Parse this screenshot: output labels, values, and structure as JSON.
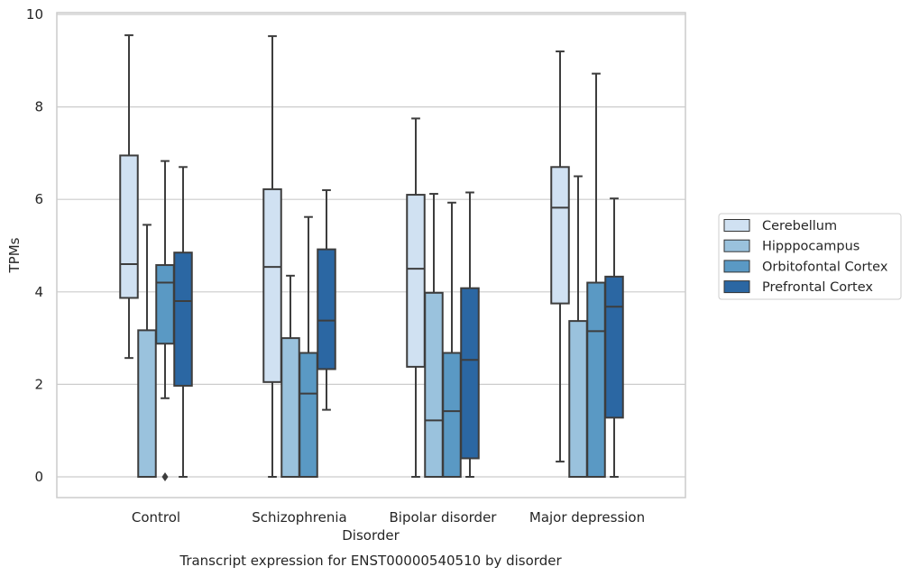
{
  "chart_data": {
    "type": "box",
    "title": "Transcript expression for ENST00000540510 by disorder",
    "xlabel": "Disorder",
    "ylabel": "TPMs",
    "ylim": [
      -0.45,
      10.05
    ],
    "yticks": [
      0,
      2,
      4,
      6,
      8,
      10
    ],
    "grid": "horizontal",
    "legend": "right",
    "categories": [
      "Control",
      "Schizophrenia",
      "Bipolar disorder",
      "Major depression"
    ],
    "series": [
      {
        "name": "Cerebellum",
        "color": "#d0e1f2",
        "boxes": [
          {
            "whisker_low": 2.57,
            "q1": 3.87,
            "median": 4.6,
            "q3": 6.95,
            "whisker_high": 9.55
          },
          {
            "whisker_low": 0.0,
            "q1": 2.05,
            "median": 4.54,
            "q3": 6.22,
            "whisker_high": 9.53
          },
          {
            "whisker_low": 0.0,
            "q1": 2.38,
            "median": 4.5,
            "q3": 6.1,
            "whisker_high": 7.75
          },
          {
            "whisker_low": 0.33,
            "q1": 3.75,
            "median": 5.82,
            "q3": 6.7,
            "whisker_high": 9.2
          }
        ]
      },
      {
        "name": "Hipppocampus",
        "color": "#9ac2dd",
        "boxes": [
          {
            "whisker_low": 0.0,
            "q1": 0.0,
            "median": 0.0,
            "q3": 3.17,
            "whisker_high": 5.45
          },
          {
            "whisker_low": 0.0,
            "q1": 0.0,
            "median": 0.0,
            "q3": 3.0,
            "whisker_high": 4.35
          },
          {
            "whisker_low": 0.0,
            "q1": 0.0,
            "median": 1.22,
            "q3": 3.98,
            "whisker_high": 6.12
          },
          {
            "whisker_low": 0.0,
            "q1": 0.0,
            "median": 0.0,
            "q3": 3.37,
            "whisker_high": 6.5
          }
        ]
      },
      {
        "name": "Orbitofontal Cortex",
        "color": "#5a99c4",
        "boxes": [
          {
            "whisker_low": 1.7,
            "q1": 2.88,
            "median": 4.2,
            "q3": 4.58,
            "whisker_high": 6.83,
            "outliers": [
              0.0
            ]
          },
          {
            "whisker_low": 0.0,
            "q1": 0.0,
            "median": 1.8,
            "q3": 2.68,
            "whisker_high": 5.62
          },
          {
            "whisker_low": 0.0,
            "q1": 0.0,
            "median": 1.42,
            "q3": 2.68,
            "whisker_high": 5.93
          },
          {
            "whisker_low": 0.0,
            "q1": 0.0,
            "median": 3.15,
            "q3": 4.2,
            "whisker_high": 8.72
          }
        ]
      },
      {
        "name": "Prefrontal Cortex",
        "color": "#2b67a3",
        "boxes": [
          {
            "whisker_low": 0.0,
            "q1": 1.97,
            "median": 3.8,
            "q3": 4.85,
            "whisker_high": 6.7
          },
          {
            "whisker_low": 1.45,
            "q1": 2.33,
            "median": 3.38,
            "q3": 4.92,
            "whisker_high": 6.2
          },
          {
            "whisker_low": 0.0,
            "q1": 0.4,
            "median": 2.53,
            "q3": 4.08,
            "whisker_high": 6.15
          },
          {
            "whisker_low": 0.0,
            "q1": 1.28,
            "median": 3.68,
            "q3": 4.33,
            "whisker_high": 6.02
          }
        ]
      }
    ]
  }
}
